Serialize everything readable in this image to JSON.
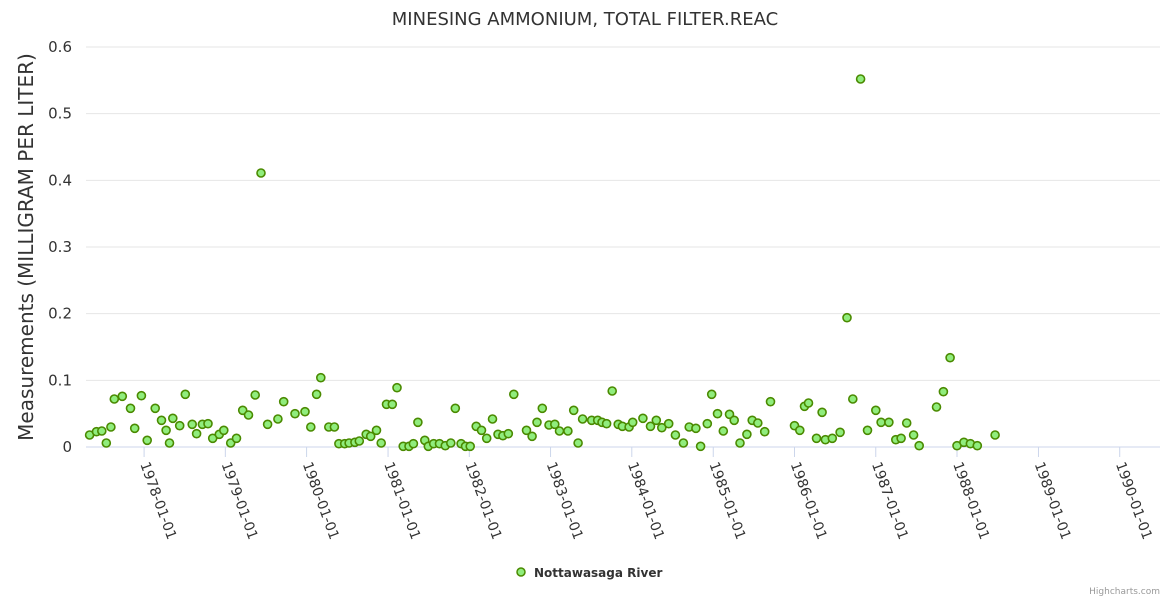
{
  "chart_data": {
    "type": "scatter",
    "title": "MINESING AMMONIUM, TOTAL FILTER.REAC",
    "ylabel": "Measurements (MILLIGRAM PER LITER)",
    "xlabel": "",
    "ylim": [
      0,
      0.6
    ],
    "yticks": [
      "0",
      "0.1",
      "0.2",
      "0.3",
      "0.4",
      "0.5",
      "0.6"
    ],
    "xlim": [
      "1977-04-15",
      "1990-07-01"
    ],
    "xticks": [
      "1978-01-01",
      "1979-01-01",
      "1980-01-01",
      "1981-01-01",
      "1982-01-01",
      "1983-01-01",
      "1984-01-01",
      "1985-01-01",
      "1986-01-01",
      "1987-01-01",
      "1988-01-01",
      "1989-01-01",
      "1990-01-01"
    ],
    "grid": true,
    "legend_position": "bottom-center",
    "series": [
      {
        "name": "Nottawasaga River",
        "color": "#90ed7d",
        "marker_stroke": "#4a8a00",
        "points": [
          [
            "1977-05-01",
            0.018
          ],
          [
            "1977-06-01",
            0.023
          ],
          [
            "1977-06-25",
            0.024
          ],
          [
            "1977-07-15",
            0.006
          ],
          [
            "1977-08-05",
            0.03
          ],
          [
            "1977-08-20",
            0.072
          ],
          [
            "1977-09-25",
            0.076
          ],
          [
            "1977-11-01",
            0.058
          ],
          [
            "1977-11-20",
            0.028
          ],
          [
            "1977-12-20",
            0.077
          ],
          [
            "1978-01-15",
            0.01
          ],
          [
            "1978-02-20",
            0.058
          ],
          [
            "1978-03-20",
            0.04
          ],
          [
            "1978-04-10",
            0.025
          ],
          [
            "1978-04-25",
            0.006
          ],
          [
            "1978-05-10",
            0.043
          ],
          [
            "1978-06-10",
            0.032
          ],
          [
            "1978-07-05",
            0.079
          ],
          [
            "1978-08-05",
            0.034
          ],
          [
            "1978-08-25",
            0.02
          ],
          [
            "1978-09-20",
            0.034
          ],
          [
            "1978-10-15",
            0.035
          ],
          [
            "1978-11-05",
            0.013
          ],
          [
            "1978-12-05",
            0.019
          ],
          [
            "1978-12-25",
            0.025
          ],
          [
            "1979-01-25",
            0.006
          ],
          [
            "1979-02-20",
            0.013
          ],
          [
            "1979-03-20",
            0.055
          ],
          [
            "1979-04-15",
            0.048
          ],
          [
            "1979-05-15",
            0.078
          ],
          [
            "1979-06-10",
            0.411
          ],
          [
            "1979-07-10",
            0.034
          ],
          [
            "1979-08-25",
            0.042
          ],
          [
            "1979-09-20",
            0.068
          ],
          [
            "1979-11-10",
            0.05
          ],
          [
            "1979-12-25",
            0.053
          ],
          [
            "1980-01-20",
            0.03
          ],
          [
            "1980-02-15",
            0.079
          ],
          [
            "1980-03-05",
            0.104
          ],
          [
            "1980-04-10",
            0.03
          ],
          [
            "1980-05-05",
            0.03
          ],
          [
            "1980-05-25",
            0.005
          ],
          [
            "1980-06-20",
            0.005
          ],
          [
            "1980-07-10",
            0.006
          ],
          [
            "1980-08-05",
            0.007
          ],
          [
            "1980-08-25",
            0.009
          ],
          [
            "1980-09-25",
            0.019
          ],
          [
            "1980-10-15",
            0.016
          ],
          [
            "1980-11-10",
            0.025
          ],
          [
            "1980-12-01",
            0.006
          ],
          [
            "1980-12-25",
            0.064
          ],
          [
            "1981-01-20",
            0.064
          ],
          [
            "1981-02-10",
            0.089
          ],
          [
            "1981-03-10",
            0.001
          ],
          [
            "1981-04-05",
            0.001
          ],
          [
            "1981-04-25",
            0.005
          ],
          [
            "1981-05-15",
            0.037
          ],
          [
            "1981-06-15",
            0.01
          ],
          [
            "1981-07-01",
            0.001
          ],
          [
            "1981-07-25",
            0.005
          ],
          [
            "1981-08-20",
            0.005
          ],
          [
            "1981-09-15",
            0.002
          ],
          [
            "1981-10-10",
            0.006
          ],
          [
            "1981-10-30",
            0.058
          ],
          [
            "1981-11-25",
            0.005
          ],
          [
            "1981-12-15",
            0.001
          ],
          [
            "1982-01-05",
            0.001
          ],
          [
            "1982-02-01",
            0.031
          ],
          [
            "1982-02-25",
            0.025
          ],
          [
            "1982-03-20",
            0.013
          ],
          [
            "1982-04-15",
            0.042
          ],
          [
            "1982-05-10",
            0.019
          ],
          [
            "1982-06-01",
            0.017
          ],
          [
            "1982-06-25",
            0.02
          ],
          [
            "1982-07-20",
            0.079
          ],
          [
            "1982-09-15",
            0.025
          ],
          [
            "1982-10-10",
            0.016
          ],
          [
            "1982-11-01",
            0.037
          ],
          [
            "1982-11-25",
            0.058
          ],
          [
            "1982-12-25",
            0.033
          ],
          [
            "1983-01-20",
            0.034
          ],
          [
            "1983-02-10",
            0.024
          ],
          [
            "1983-03-20",
            0.024
          ],
          [
            "1983-04-15",
            0.055
          ],
          [
            "1983-05-05",
            0.006
          ],
          [
            "1983-05-25",
            0.042
          ],
          [
            "1983-07-05",
            0.04
          ],
          [
            "1983-08-01",
            0.04
          ],
          [
            "1983-08-20",
            0.037
          ],
          [
            "1983-09-10",
            0.035
          ],
          [
            "1983-10-05",
            0.084
          ],
          [
            "1983-11-01",
            0.034
          ],
          [
            "1983-11-20",
            0.031
          ],
          [
            "1983-12-20",
            0.03
          ],
          [
            "1984-01-05",
            0.037
          ],
          [
            "1984-02-20",
            0.043
          ],
          [
            "1984-03-25",
            0.031
          ],
          [
            "1984-04-20",
            0.04
          ],
          [
            "1984-05-15",
            0.029
          ],
          [
            "1984-06-15",
            0.035
          ],
          [
            "1984-07-15",
            0.018
          ],
          [
            "1984-08-20",
            0.006
          ],
          [
            "1984-09-15",
            0.03
          ],
          [
            "1984-10-15",
            0.028
          ],
          [
            "1984-11-05",
            0.001
          ],
          [
            "1984-12-05",
            0.035
          ],
          [
            "1984-12-25",
            0.079
          ],
          [
            "1985-01-20",
            0.05
          ],
          [
            "1985-02-15",
            0.024
          ],
          [
            "1985-03-15",
            0.049
          ],
          [
            "1985-04-05",
            0.04
          ],
          [
            "1985-05-01",
            0.006
          ],
          [
            "1985-06-01",
            0.019
          ],
          [
            "1985-06-25",
            0.04
          ],
          [
            "1985-07-20",
            0.036
          ],
          [
            "1985-08-20",
            0.023
          ],
          [
            "1985-09-15",
            0.068
          ],
          [
            "1986-01-01",
            0.032
          ],
          [
            "1986-01-25",
            0.025
          ],
          [
            "1986-02-15",
            0.061
          ],
          [
            "1986-03-05",
            0.066
          ],
          [
            "1986-04-10",
            0.013
          ],
          [
            "1986-05-05",
            0.052
          ],
          [
            "1986-05-20",
            0.011
          ],
          [
            "1986-06-20",
            0.013
          ],
          [
            "1986-07-25",
            0.022
          ],
          [
            "1986-08-25",
            0.194
          ],
          [
            "1986-09-20",
            0.072
          ],
          [
            "1986-10-25",
            0.552
          ],
          [
            "1986-11-25",
            0.025
          ],
          [
            "1987-01-01",
            0.055
          ],
          [
            "1987-01-25",
            0.037
          ],
          [
            "1987-03-01",
            0.037
          ],
          [
            "1987-04-01",
            0.011
          ],
          [
            "1987-04-25",
            0.013
          ],
          [
            "1987-05-20",
            0.036
          ],
          [
            "1987-06-20",
            0.018
          ],
          [
            "1987-07-15",
            0.002
          ],
          [
            "1987-10-01",
            0.06
          ],
          [
            "1987-11-01",
            0.083
          ],
          [
            "1987-12-01",
            0.134
          ],
          [
            "1988-01-01",
            0.002
          ],
          [
            "1988-02-01",
            0.007
          ],
          [
            "1988-03-01",
            0.005
          ],
          [
            "1988-04-01",
            0.002
          ],
          [
            "1988-06-20",
            0.018
          ]
        ]
      }
    ]
  },
  "legend": {
    "label": "Nottawasaga River"
  },
  "credits": {
    "text": "Highcharts.com"
  }
}
